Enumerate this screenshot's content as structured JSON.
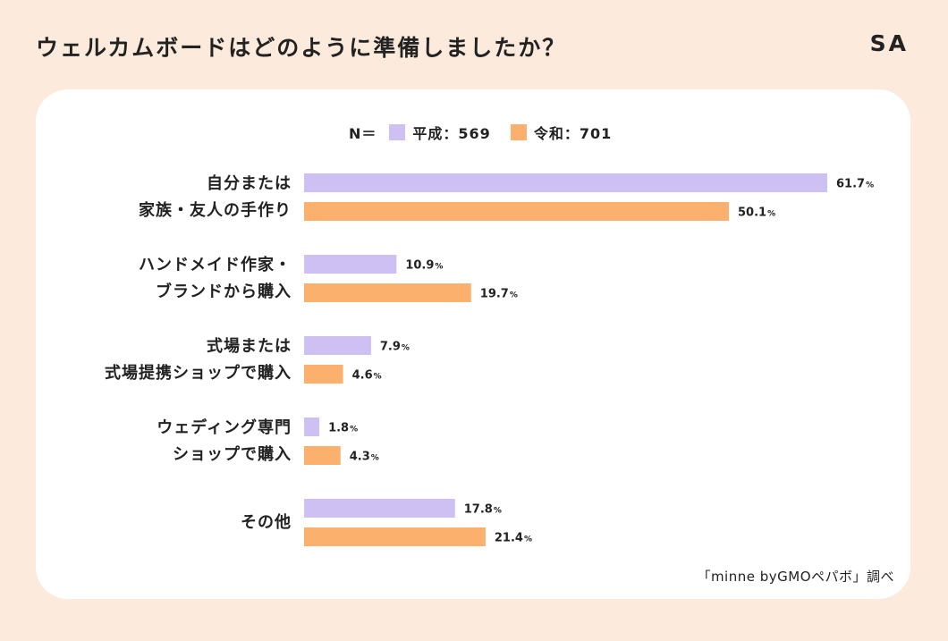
{
  "header": {
    "title": "ウェルカムボードはどのように準備しましたか？",
    "brand": "SA"
  },
  "legend": {
    "n_label": "N＝",
    "items": [
      {
        "label": "平成：569",
        "color": "#cfc0f4"
      },
      {
        "label": "令和：701",
        "color": "#fbb06e"
      }
    ]
  },
  "source": "「minne byGMOペパボ」調べ",
  "chart_data": {
    "type": "bar",
    "orientation": "horizontal",
    "categories": [
      [
        "自分または",
        "家族・友人の手作り"
      ],
      [
        "ハンドメイド作家・",
        "ブランドから購入"
      ],
      [
        "式場または",
        "式場提携ショップで購入"
      ],
      [
        "ウェディング専門",
        "ショップで購入"
      ],
      [
        "その他"
      ]
    ],
    "series": [
      {
        "name": "平成：569",
        "color": "#cfc0f4",
        "values": [
          61.7,
          10.9,
          7.9,
          1.8,
          17.8
        ],
        "labels": [
          "61.7",
          "10.9",
          "7.9",
          "1.8",
          "17.8"
        ]
      },
      {
        "name": "令和：701",
        "color": "#fbb06e",
        "values": [
          50.1,
          19.7,
          4.6,
          4.3,
          21.4
        ],
        "labels": [
          "50.1",
          "19.7",
          "4.6",
          "4.3",
          "21.4"
        ]
      }
    ],
    "unit": "%",
    "xlim": [
      0,
      61.7
    ],
    "grid": false
  }
}
